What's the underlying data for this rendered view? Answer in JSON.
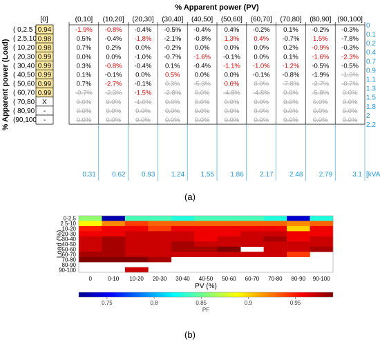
{
  "chart_data": [
    {
      "type": "table",
      "panel_label": "(a)",
      "column_header_title": "% Apparent power (PV)",
      "row_header_title": "% Apparent power (Load)",
      "first_column_header": "[0]",
      "column_headers": [
        "(0,10]",
        "(10,20]",
        "(20,30]",
        "(30,40]",
        "(40,50]",
        "(50,60]",
        "(60,70]",
        "(70,80]",
        "(80,90]",
        "(90,100]"
      ],
      "row_headers": [
        "( 0,2.5 ]",
        "( 2.5,10 ]",
        "( 10,20 ]",
        "( 20,30 ]",
        "( 30,40 ]",
        "( 40,50 ]",
        "( 50,60 ]",
        "( 60,70 ]",
        "( 70,80 ]",
        "( 80,90 ]",
        "(90,100]"
      ],
      "first_column_values": [
        "0.94",
        "0.98",
        "0.98",
        "0.99",
        "0.99",
        "0.99",
        "0.99",
        "0.99",
        "X",
        "-",
        "-"
      ],
      "right_axis_values": [
        "0",
        "0.1",
        "0.2",
        "0.4",
        "0.7",
        "0.9",
        "1.1",
        "1.3",
        "1.5",
        "1.8",
        "2",
        "2.2"
      ],
      "bottom_axis_values": [
        "0.31",
        "0.62",
        "0.93",
        "1.24",
        "1.55",
        "1.86",
        "2.17",
        "2.48",
        "2.79",
        "3.1"
      ],
      "bottom_axis_unit": "[kVA]",
      "highlight_color": "#fde9a0",
      "colors": {
        "normal": "#000000",
        "red": "#e00000",
        "struck": "#aaaaaa",
        "axis": "#1e9be0"
      },
      "cells": [
        [
          [
            "-1.9%",
            "r"
          ],
          [
            "-0.8%",
            "r"
          ],
          [
            "-0.4%",
            "n"
          ],
          [
            "-0.5%",
            "n"
          ],
          [
            "-0.4%",
            "n"
          ],
          [
            "0.4%",
            "n"
          ],
          [
            "-0.2%",
            "n"
          ],
          [
            "0.1%",
            "n"
          ],
          [
            "-0.2%",
            "n"
          ],
          [
            "-0.3%",
            "n"
          ]
        ],
        [
          [
            "0.5%",
            "n"
          ],
          [
            "-0.4%",
            "n"
          ],
          [
            "-1.8%",
            "r"
          ],
          [
            "-2.1%",
            "n"
          ],
          [
            "-0.8%",
            "n"
          ],
          [
            "1.3%",
            "r"
          ],
          [
            "0.4%",
            "r"
          ],
          [
            "-0.7%",
            "n"
          ],
          [
            "1.5%",
            "r"
          ],
          [
            "-7.8%",
            "n"
          ]
        ],
        [
          [
            "0.7%",
            "n"
          ],
          [
            "0.2%",
            "n"
          ],
          [
            "0.0%",
            "n"
          ],
          [
            "-0.2%",
            "n"
          ],
          [
            "0.0%",
            "n"
          ],
          [
            "0.0%",
            "n"
          ],
          [
            "0.0%",
            "n"
          ],
          [
            "0.2%",
            "n"
          ],
          [
            "-0.9%",
            "r"
          ],
          [
            "-0.3%",
            "n"
          ]
        ],
        [
          [
            "0.0%",
            "n"
          ],
          [
            "0.0%",
            "n"
          ],
          [
            "-1.0%",
            "n"
          ],
          [
            "-0.7%",
            "n"
          ],
          [
            "-1.6%",
            "r"
          ],
          [
            "-0.1%",
            "n"
          ],
          [
            "0.0%",
            "n"
          ],
          [
            "0.1%",
            "n"
          ],
          [
            "-1.6%",
            "r"
          ],
          [
            "-2.3%",
            "r"
          ]
        ],
        [
          [
            "0.3%",
            "n"
          ],
          [
            "-0.8%",
            "r"
          ],
          [
            "-0.4%",
            "n"
          ],
          [
            "0.1%",
            "n"
          ],
          [
            "-0.4%",
            "n"
          ],
          [
            "-1.1%",
            "r"
          ],
          [
            "-1.0%",
            "r"
          ],
          [
            "-1.2%",
            "r"
          ],
          [
            "-0.5%",
            "n"
          ],
          [
            "-0.5%",
            "n"
          ]
        ],
        [
          [
            "0.1%",
            "n"
          ],
          [
            "-0.1%",
            "n"
          ],
          [
            "0.0%",
            "n"
          ],
          [
            "0.5%",
            "r"
          ],
          [
            "0.0%",
            "n"
          ],
          [
            "0.0%",
            "n"
          ],
          [
            "-0.1%",
            "n"
          ],
          [
            "-0.8%",
            "n"
          ],
          [
            "-1.9%",
            "n"
          ],
          [
            "-1.9%",
            "s"
          ]
        ],
        [
          [
            "0.7%",
            "n"
          ],
          [
            "-2.7%",
            "r"
          ],
          [
            "-0.1%",
            "n"
          ],
          [
            "0.3%",
            "s"
          ],
          [
            "-5.3%",
            "s"
          ],
          [
            "0.6%",
            "r"
          ],
          [
            "0.0%",
            "s"
          ],
          [
            "-7.8%",
            "s"
          ],
          [
            "-2.7%",
            "s"
          ],
          [
            "-0.7%",
            "s"
          ]
        ],
        [
          [
            "-0.7%",
            "s"
          ],
          [
            "-2.3%",
            "s"
          ],
          [
            "-1.5%",
            "r"
          ],
          [
            "-2.8%",
            "s"
          ],
          [
            "0.0%",
            "s"
          ],
          [
            "-4.8%",
            "s"
          ],
          [
            "-4.8%",
            "s"
          ],
          [
            "0.0%",
            "s"
          ],
          [
            "-5.8%",
            "s"
          ],
          [
            "0.0%",
            "s"
          ]
        ],
        [
          [
            "0.0%",
            "s"
          ],
          [
            "0.0%",
            "s"
          ],
          [
            "-1.0%",
            "s"
          ],
          [
            "0.0%",
            "s"
          ],
          [
            "0.0%",
            "s"
          ],
          [
            "0.0%",
            "s"
          ],
          [
            "0.0%",
            "s"
          ],
          [
            "0.0%",
            "s"
          ],
          [
            "0.0%",
            "s"
          ],
          [
            "0.0%",
            "s"
          ]
        ],
        [
          [
            "0.0%",
            "s"
          ],
          [
            "0.0%",
            "s"
          ],
          [
            "0.0%",
            "s"
          ],
          [
            "0.0%",
            "s"
          ],
          [
            "0.0%",
            "s"
          ],
          [
            "0.0%",
            "s"
          ],
          [
            "0.0%",
            "s"
          ],
          [
            "0.0%",
            "s"
          ],
          [
            "0.0%",
            "s"
          ],
          [
            "0.0%",
            "s"
          ]
        ],
        [
          [
            "0.0%",
            "s"
          ],
          [
            "0.0%",
            "s"
          ],
          [
            "0.0%",
            "s"
          ],
          [
            "0.0%",
            "s"
          ],
          [
            "0.0%",
            "s"
          ],
          [
            "0.0%",
            "s"
          ],
          [
            "0.0%",
            "s"
          ],
          [
            "0.0%",
            "s"
          ],
          [
            "0.0%",
            "s"
          ],
          [
            "0.0%",
            "s"
          ]
        ]
      ]
    },
    {
      "type": "heatmap",
      "panel_label": "(b)",
      "xlabel": "PV (%)",
      "ylabel": "Load (%)",
      "x_categories": [
        "0",
        "0-10",
        "10-20",
        "20-30",
        "30-40",
        "40-50",
        "50-60",
        "60-70",
        "70-80",
        "80-90",
        "90-100"
      ],
      "y_categories": [
        "0-2.5",
        "2.5-10",
        "10-20",
        "20-30",
        "30-40",
        "40-50",
        "50-60",
        "60-70",
        "70-80",
        "80-90",
        "90-100"
      ],
      "colorbar": {
        "label": "PF",
        "min": 0.72,
        "max": 0.99,
        "ticks": [
          0.75,
          0.8,
          0.85,
          0.9,
          0.95
        ]
      },
      "values": [
        [
          0.86,
          0.73,
          0.84,
          0.84,
          0.83,
          0.84,
          0.84,
          0.84,
          0.83,
          0.74,
          0.83
        ],
        [
          0.89,
          0.92,
          0.94,
          0.93,
          0.93,
          0.93,
          0.93,
          0.93,
          0.93,
          0.92,
          0.93
        ],
        [
          0.95,
          0.96,
          0.96,
          0.94,
          0.96,
          0.96,
          0.96,
          0.96,
          0.96,
          0.9,
          0.96
        ],
        [
          0.96,
          0.96,
          0.97,
          0.97,
          0.97,
          0.96,
          0.96,
          0.97,
          0.97,
          0.96,
          0.96
        ],
        [
          0.97,
          0.98,
          0.97,
          0.97,
          0.97,
          0.96,
          0.97,
          0.97,
          0.98,
          0.96,
          0.97
        ],
        [
          0.97,
          0.98,
          0.97,
          0.97,
          0.98,
          0.97,
          0.97,
          0.97,
          0.97,
          0.97,
          0.97
        ],
        [
          0.97,
          0.98,
          0.97,
          0.97,
          0.98,
          0.98,
          0.99,
          null,
          0.97,
          0.97,
          0.98
        ],
        [
          0.98,
          0.98,
          0.97,
          0.97,
          0.97,
          0.97,
          0.97,
          0.97,
          0.97,
          0.94,
          null
        ],
        [
          0.99,
          0.99,
          0.99,
          0.98,
          null,
          null,
          null,
          null,
          null,
          null,
          null
        ],
        [
          null,
          null,
          null,
          null,
          null,
          null,
          null,
          null,
          null,
          null,
          null
        ],
        [
          null,
          null,
          0.97,
          null,
          null,
          null,
          null,
          null,
          null,
          null,
          null
        ]
      ]
    }
  ]
}
